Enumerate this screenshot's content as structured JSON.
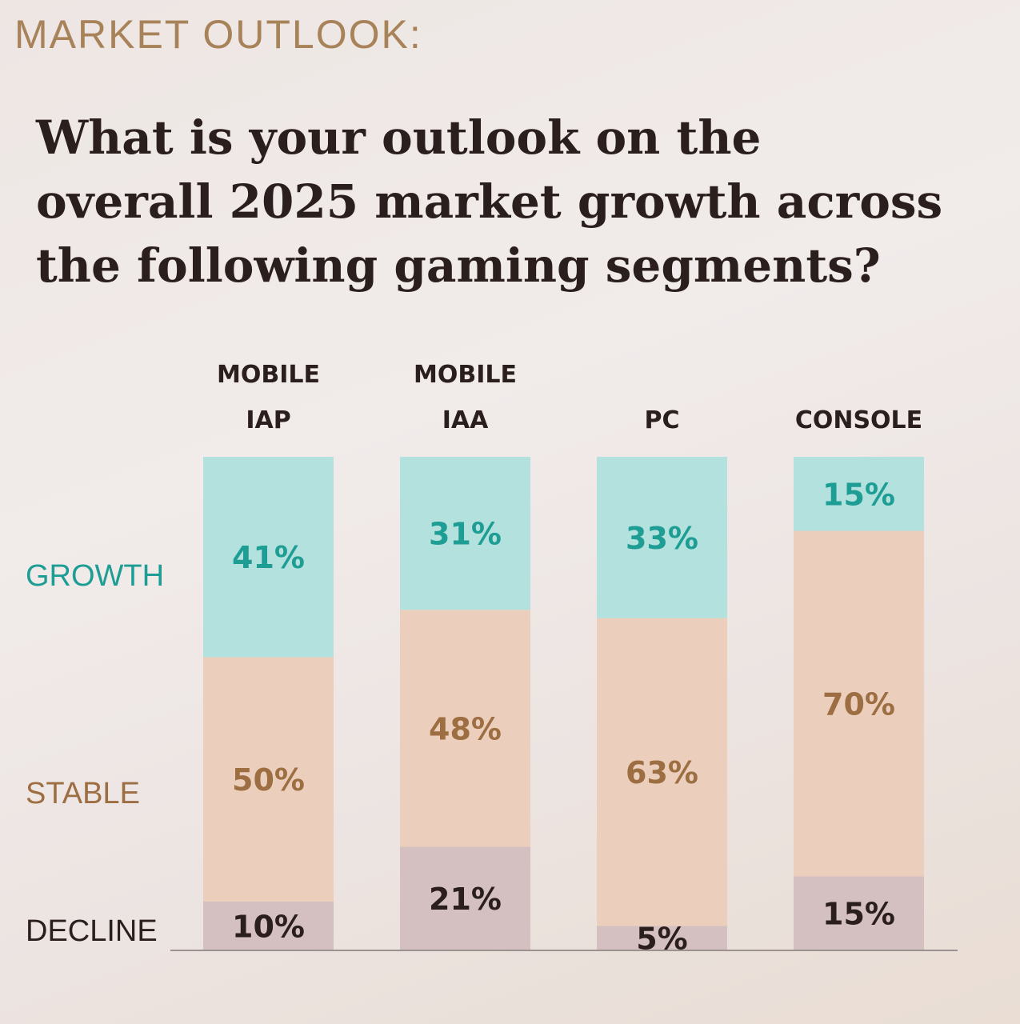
{
  "header": {
    "kicker": "MARKET OUTLOOK:",
    "title_lines": [
      "What is your outlook on the",
      "overall 2025 market growth across",
      "the following gaming segments?"
    ]
  },
  "colors": {
    "growth_fill": "#b2e1de",
    "growth_text": "#1e9d94",
    "stable_fill": "#ebcfbc",
    "stable_text": "#9c6e42",
    "decline_fill": "#d5c0c1",
    "decline_text": "#2a1f1d"
  },
  "chart_data": {
    "type": "bar",
    "stacked": true,
    "orientation": "vertical",
    "categories": [
      [
        "MOBILE",
        "IAP"
      ],
      [
        "MOBILE",
        "IAA"
      ],
      [
        "PC"
      ],
      [
        "CONSOLE"
      ]
    ],
    "series": [
      {
        "name": "DECLINE",
        "values": [
          10,
          21,
          5,
          15
        ],
        "labels": [
          "10%",
          "21%",
          "5%",
          "15%"
        ]
      },
      {
        "name": "STABLE",
        "values": [
          50,
          48,
          63,
          70
        ],
        "labels": [
          "50%",
          "48%",
          "63%",
          "70%"
        ]
      },
      {
        "name": "GROWTH",
        "values": [
          41,
          31,
          33,
          15
        ],
        "labels": [
          "41%",
          "31%",
          "33%",
          "15%"
        ]
      }
    ],
    "unit": "%",
    "legend": "left row labels",
    "grid": false
  }
}
